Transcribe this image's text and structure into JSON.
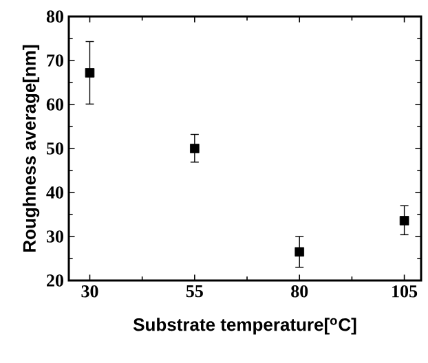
{
  "chart_data": {
    "type": "scatter",
    "xlabel": "Substrate temperature[$^{o}$C]",
    "ylabel": "Roughness average[nm]",
    "x": [
      30,
      55,
      80,
      105
    ],
    "values": [
      67.2,
      50,
      26.5,
      33.6
    ],
    "errors": [
      [
        60.1,
        74.3
      ],
      [
        46.9,
        53.2
      ],
      [
        23,
        30
      ],
      [
        30.4,
        37
      ]
    ],
    "color": "#000000",
    "marker": "square",
    "xlim": [
      25,
      109
    ],
    "xticks": [
      30,
      55,
      80,
      105
    ],
    "ylim": [
      20,
      80
    ],
    "yticks": [
      20,
      30,
      40,
      50,
      60,
      70,
      80
    ],
    "grid": false
  }
}
